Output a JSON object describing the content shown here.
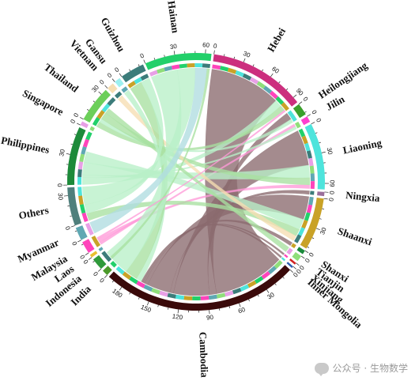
{
  "watermark": {
    "text": "公众号 · 生物数学",
    "icon": "wechat-icon"
  },
  "chart_data": {
    "type": "chord",
    "title": "",
    "grid": false,
    "legend": "none",
    "tick_step": 30,
    "segments": [
      {
        "name": "Hebei",
        "value": 96,
        "color": "#cc2f7e",
        "group": "china"
      },
      {
        "name": "Heilongjiang",
        "value": 12,
        "color": "#3aa02b",
        "group": "china"
      },
      {
        "name": "Jilin",
        "value": 6,
        "color": "#ff3fcf",
        "group": "china"
      },
      {
        "name": "Liaoning",
        "value": 66,
        "color": "#4ee4dc",
        "group": "china"
      },
      {
        "name": "Ningxia",
        "value": 4,
        "color": "#9b6e9b",
        "group": "china"
      },
      {
        "name": "Shaanxi",
        "value": 52,
        "color": "#c9a227",
        "group": "china"
      },
      {
        "name": "Shanxi",
        "value": 4,
        "color": "#1a8a3a",
        "group": "china"
      },
      {
        "name": "Tianjin",
        "value": 6,
        "color": "#8fde7a",
        "group": "china"
      },
      {
        "name": "Xinjiang",
        "value": 2,
        "color": "#d02020",
        "group": "china"
      },
      {
        "name": "Inner Mongolia",
        "value": 2,
        "color": "#2f5fb0",
        "group": "china"
      },
      {
        "name": "Cambodia",
        "value": 196,
        "color": "#3a0a0a",
        "group": "asean"
      },
      {
        "name": "India",
        "value": 6,
        "color": "#4c9a2a",
        "group": "asean"
      },
      {
        "name": "Indonesia",
        "value": 12,
        "color": "#2f9a3a",
        "group": "asean"
      },
      {
        "name": "Laos",
        "value": 3,
        "color": "#e8c030",
        "group": "asean"
      },
      {
        "name": "Malaysia",
        "value": 12,
        "color": "#ff44bb",
        "group": "asean"
      },
      {
        "name": "Myanmar",
        "value": 13,
        "color": "#5fa8b3",
        "group": "asean"
      },
      {
        "name": "Others",
        "value": 38,
        "color": "#4f7f7c",
        "group": "asean"
      },
      {
        "name": "Philippines",
        "value": 58,
        "color": "#1d8a3a",
        "group": "asean"
      },
      {
        "name": "Singapore",
        "value": 4,
        "color": "#e8a0e6",
        "group": "asean"
      },
      {
        "name": "Thailand",
        "value": 36,
        "color": "#6ccf5a",
        "group": "asean"
      },
      {
        "name": "Vietnam",
        "value": 7,
        "color": "#f6deb2",
        "group": "asean"
      },
      {
        "name": "Gansu",
        "value": 6,
        "color": "#9df0f0",
        "group": "china"
      },
      {
        "name": "Guizhou",
        "value": 24,
        "color": "#3c7c7a",
        "group": "china"
      },
      {
        "name": "Hainan",
        "value": 66,
        "color": "#22d06a",
        "group": "china"
      }
    ],
    "links": [
      {
        "source": "Hebei",
        "target": "Cambodia",
        "value": 80,
        "color": "#8a6a6e"
      },
      {
        "source": "Hebei",
        "target": "Philippines",
        "value": 8,
        "color": "#b8f0c8"
      },
      {
        "source": "Hebei",
        "target": "Thailand",
        "value": 6,
        "color": "#a8e0a0"
      },
      {
        "source": "Heilongjiang",
        "target": "Cambodia",
        "value": 8,
        "color": "#8a6a6e"
      },
      {
        "source": "Heilongjiang",
        "target": "Thailand",
        "value": 4,
        "color": "#b8f0c8"
      },
      {
        "source": "Jilin",
        "target": "Malaysia",
        "value": 3,
        "color": "#ff9ad8"
      },
      {
        "source": "Jilin",
        "target": "Philippines",
        "value": 3,
        "color": "#b8f0c8"
      },
      {
        "source": "Liaoning",
        "target": "Cambodia",
        "value": 40,
        "color": "#8a6a6e"
      },
      {
        "source": "Liaoning",
        "target": "Philippines",
        "value": 14,
        "color": "#b8f0c8"
      },
      {
        "source": "Liaoning",
        "target": "Thailand",
        "value": 8,
        "color": "#a8e0a0"
      },
      {
        "source": "Liaoning",
        "target": "Malaysia",
        "value": 4,
        "color": "#ff9ad8"
      },
      {
        "source": "Ningxia",
        "target": "Cambodia",
        "value": 4,
        "color": "#8a6a6e"
      },
      {
        "source": "Shaanxi",
        "target": "Cambodia",
        "value": 26,
        "color": "#8a6a6e"
      },
      {
        "source": "Shaanxi",
        "target": "Philippines",
        "value": 12,
        "color": "#b8f0c8"
      },
      {
        "source": "Shaanxi",
        "target": "Others",
        "value": 8,
        "color": "#a8e0a0"
      },
      {
        "source": "Shaanxi",
        "target": "Vietnam",
        "value": 6,
        "color": "#f6deb2"
      },
      {
        "source": "Shanxi",
        "target": "Cambodia",
        "value": 4,
        "color": "#8a6a6e"
      },
      {
        "source": "Tianjin",
        "target": "Thailand",
        "value": 6,
        "color": "#a8e0a0"
      },
      {
        "source": "Xinjiang",
        "target": "Cambodia",
        "value": 2,
        "color": "#8a6a6e"
      },
      {
        "source": "Inner Mongolia",
        "target": "Cambodia",
        "value": 2,
        "color": "#8a6a6e"
      },
      {
        "source": "Gansu",
        "target": "Cambodia",
        "value": 6,
        "color": "#b8f0c8"
      },
      {
        "source": "Guizhou",
        "target": "Cambodia",
        "value": 14,
        "color": "#a8e0a0"
      },
      {
        "source": "Guizhou",
        "target": "Others",
        "value": 10,
        "color": "#b8f0c8"
      },
      {
        "source": "Hainan",
        "target": "Cambodia",
        "value": 30,
        "color": "#b8f0c8"
      },
      {
        "source": "Hainan",
        "target": "Others",
        "value": 20,
        "color": "#b8f0c8"
      },
      {
        "source": "Hainan",
        "target": "Myanmar",
        "value": 13,
        "color": "#b0dce0"
      },
      {
        "source": "Hainan",
        "target": "Indonesia",
        "value": 3,
        "color": "#a8e0a0"
      },
      {
        "source": "Hebei",
        "target": "Malaysia",
        "value": 2,
        "color": "#ff9ad8"
      },
      {
        "source": "Hainan",
        "target": "India",
        "value": 0,
        "color": "#a8e0a0"
      },
      {
        "source": "Heilongjiang",
        "target": "Indonesia",
        "value": 0,
        "color": "#a8e0a0"
      },
      {
        "source": "Tianjin",
        "target": "Indonesia",
        "value": 0,
        "color": "#a8e0a0"
      },
      {
        "source": "Liaoning",
        "target": "Indonesia",
        "value": 0,
        "color": "#a8e0a0"
      }
    ]
  }
}
